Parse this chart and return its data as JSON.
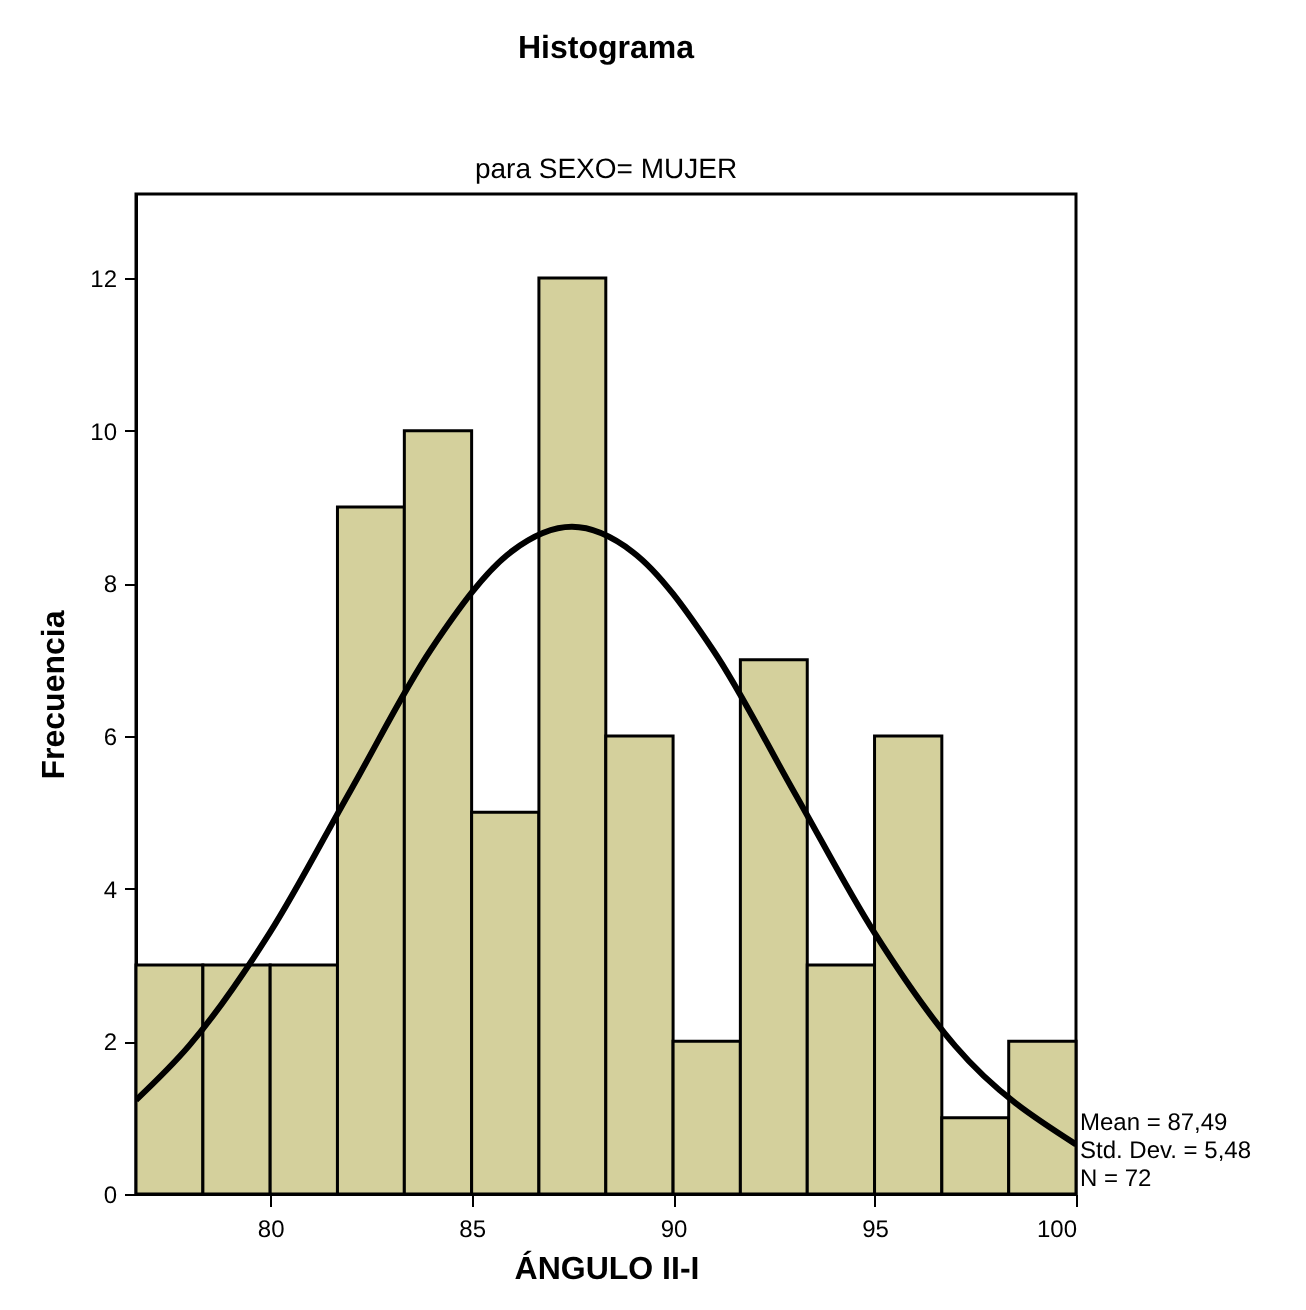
{
  "chart_data": {
    "type": "histogram",
    "title": "Histograma",
    "subtitle": "para SEXO= MUJER",
    "xlabel": "ÁNGULO II-I",
    "ylabel": "Frecuencia",
    "bins": [
      76.67,
      78.33,
      80,
      81.67,
      83.33,
      85,
      86.67,
      88.33,
      90,
      91.67,
      93.33,
      95,
      96.67,
      98.33,
      100
    ],
    "values": [
      3,
      3,
      3,
      9,
      10,
      5,
      12,
      6,
      2,
      7,
      3,
      6,
      1,
      2
    ],
    "color": "#d4d09c",
    "series": [
      {
        "type": "line",
        "color": "#000000",
        "x": [
          76.67,
          78,
          80,
          82,
          84,
          86,
          87.49,
          89,
          91,
          93,
          95,
          97,
          100
        ],
        "values": [
          1.23,
          1.95,
          3.43,
          5.29,
          7.14,
          8.42,
          8.74,
          8.41,
          7.12,
          5.27,
          3.42,
          1.94,
          0.65
        ]
      }
    ],
    "xlim": [
      76.67,
      100
    ],
    "xticks": [
      80,
      85,
      90,
      95,
      100
    ],
    "ylim": [
      0,
      13.1
    ],
    "yticks": [
      0,
      2,
      4,
      6,
      8,
      10,
      12
    ],
    "grid": false,
    "annotations": [
      "Mean = 87,49",
      "Std. Dev. = 5,48",
      "N = 72"
    ]
  }
}
